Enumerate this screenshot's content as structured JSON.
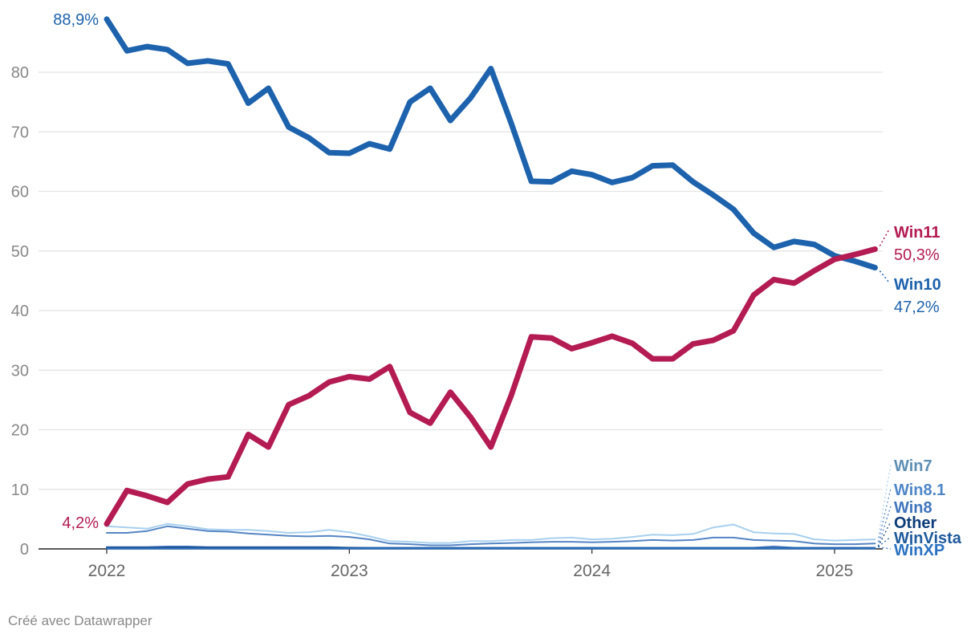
{
  "chart_data": {
    "type": "line",
    "title": "",
    "xlabel": "",
    "ylabel": "",
    "ylim": [
      0,
      90
    ],
    "yticks": [
      0,
      10,
      20,
      30,
      40,
      50,
      60,
      70,
      80
    ],
    "xticks": [
      {
        "value": 2022.0,
        "label": "2022"
      },
      {
        "value": 2023.0,
        "label": "2023"
      },
      {
        "value": 2024.0,
        "label": "2024"
      },
      {
        "value": 2025.0,
        "label": "2025"
      }
    ],
    "x_start": 2022.0,
    "x_step": 0.08333,
    "series": [
      {
        "name": "Win10",
        "color": "#1d62ad",
        "width": 7,
        "values": [
          88.9,
          83.6,
          84.3,
          83.8,
          81.5,
          81.9,
          81.4,
          74.8,
          77.3,
          70.8,
          69.0,
          66.5,
          66.4,
          68.0,
          67.1,
          75.0,
          77.3,
          71.9,
          75.7,
          80.6,
          71.5,
          61.7,
          61.6,
          63.4,
          62.8,
          61.5,
          62.3,
          64.3,
          64.4,
          61.6,
          59.4,
          57.0,
          53.0,
          50.6,
          51.6,
          51.1,
          49.2,
          48.3,
          47.2
        ],
        "end_label": "Win10",
        "end_value": "47,2%",
        "start_value": "88,9%"
      },
      {
        "name": "Win11",
        "color": "#b31b52",
        "width": 7,
        "values": [
          4.2,
          9.8,
          8.9,
          7.8,
          10.9,
          11.7,
          12.1,
          19.2,
          17.1,
          24.2,
          25.7,
          28.0,
          28.9,
          28.5,
          30.6,
          22.9,
          21.1,
          26.3,
          22.1,
          17.1,
          25.7,
          35.6,
          35.4,
          33.6,
          34.6,
          35.7,
          34.5,
          31.9,
          31.9,
          34.4,
          35.0,
          36.6,
          42.6,
          45.2,
          44.6,
          46.7,
          48.6,
          49.4,
          50.3
        ],
        "end_label": "Win11",
        "end_value": "50,3%",
        "start_value": "4,2%"
      },
      {
        "name": "Win7",
        "color": "#a8d0ef",
        "width": 2,
        "values": [
          3.8,
          3.6,
          3.4,
          4.2,
          3.8,
          3.3,
          3.2,
          3.2,
          3.0,
          2.7,
          2.8,
          3.2,
          2.8,
          2.1,
          1.3,
          1.2,
          1.0,
          1.0,
          1.3,
          1.3,
          1.5,
          1.5,
          1.8,
          1.9,
          1.6,
          1.7,
          2.0,
          2.4,
          2.3,
          2.5,
          3.6,
          4.1,
          2.8,
          2.6,
          2.5,
          1.6,
          1.4,
          1.5,
          1.6
        ],
        "end_label": "Win7"
      },
      {
        "name": "Win8.1",
        "color": "#5585c4",
        "width": 2,
        "values": [
          2.7,
          2.7,
          3.0,
          3.8,
          3.4,
          3.0,
          2.9,
          2.6,
          2.4,
          2.2,
          2.1,
          2.2,
          2.0,
          1.6,
          0.9,
          0.8,
          0.6,
          0.6,
          0.8,
          0.9,
          1.0,
          1.1,
          1.2,
          1.2,
          1.1,
          1.2,
          1.3,
          1.5,
          1.4,
          1.5,
          1.9,
          1.9,
          1.5,
          1.4,
          1.3,
          0.9,
          0.8,
          0.8,
          0.9
        ],
        "end_label": "Win8.1"
      },
      {
        "name": "Win8",
        "color": "#3f74bd",
        "width": 2,
        "values": [
          0.3,
          0.3,
          0.3,
          0.4,
          0.4,
          0.3,
          0.3,
          0.3,
          0.3,
          0.3,
          0.3,
          0.3,
          0.2,
          0.2,
          0.2,
          0.2,
          0.2,
          0.2,
          0.2,
          0.2,
          0.2,
          0.2,
          0.2,
          0.2,
          0.2,
          0.2,
          0.2,
          0.2,
          0.2,
          0.2,
          0.2,
          0.2,
          0.2,
          0.4,
          0.2,
          0.2,
          0.2,
          0.2,
          0.2
        ],
        "end_label": "Win8"
      },
      {
        "name": "Other",
        "color": "#0c3c78",
        "width": 2,
        "values": [
          0.2,
          0.2,
          0.2,
          0.2,
          0.2,
          0.2,
          0.2,
          0.2,
          0.2,
          0.2,
          0.2,
          0.2,
          0.2,
          0.1,
          0.1,
          0.1,
          0.1,
          0.1,
          0.1,
          0.1,
          0.1,
          0.1,
          0.1,
          0.1,
          0.1,
          0.1,
          0.1,
          0.1,
          0.1,
          0.1,
          0.1,
          0.1,
          0.1,
          0.1,
          0.1,
          0.1,
          0.1,
          0.1,
          0.1
        ],
        "end_label": "Other"
      },
      {
        "name": "WinVista",
        "color": "#1e5a9c",
        "width": 2,
        "values": [
          0.1,
          0.1,
          0.1,
          0.1,
          0.1,
          0.1,
          0.1,
          0.1,
          0.1,
          0.1,
          0.1,
          0.1,
          0.1,
          0.1,
          0.1,
          0.1,
          0.1,
          0.1,
          0.1,
          0.1,
          0.1,
          0.1,
          0.1,
          0.1,
          0.1,
          0.1,
          0.1,
          0.1,
          0.1,
          0.1,
          0.1,
          0.1,
          0.1,
          0.1,
          0.1,
          0.1,
          0.1,
          0.1,
          0.1
        ],
        "end_label": "WinVista"
      },
      {
        "name": "WinXP",
        "color": "#2b72c2",
        "width": 2,
        "values": [
          0.05,
          0.05,
          0.05,
          0.05,
          0.05,
          0.05,
          0.05,
          0.05,
          0.05,
          0.05,
          0.05,
          0.05,
          0.05,
          0.05,
          0.05,
          0.05,
          0.05,
          0.05,
          0.05,
          0.05,
          0.05,
          0.05,
          0.05,
          0.05,
          0.05,
          0.05,
          0.05,
          0.05,
          0.05,
          0.05,
          0.05,
          0.05,
          0.05,
          0.05,
          0.05,
          0.05,
          0.05,
          0.05,
          0.05
        ],
        "end_label": "WinXP"
      }
    ]
  },
  "credit": "Créé avec Datawrapper"
}
